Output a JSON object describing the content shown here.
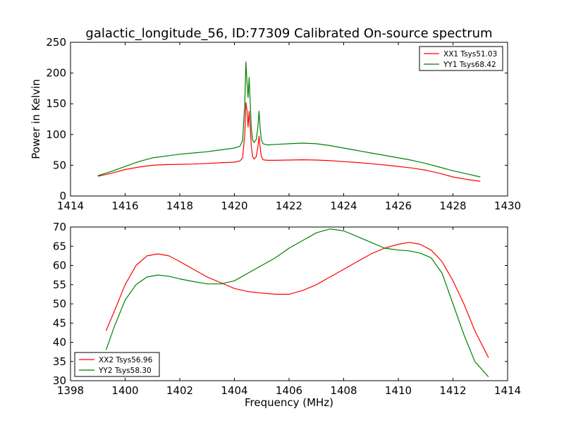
{
  "figure": {
    "title": "galactic_longitude_56, ID:77309 Calibrated On-source spectrum"
  },
  "chart_data": [
    {
      "type": "line",
      "title": "galactic_longitude_56, ID:77309 Calibrated On-source spectrum",
      "xlabel": "",
      "ylabel": "Power in Kelvin",
      "xlim": [
        1414,
        1430
      ],
      "ylim": [
        0,
        250
      ],
      "xticks": [
        1414,
        1416,
        1418,
        1420,
        1422,
        1424,
        1426,
        1428,
        1430
      ],
      "yticks": [
        0,
        50,
        100,
        150,
        200,
        250
      ],
      "grid": false,
      "legend_position": "top-right",
      "series": [
        {
          "name": "XX1 Tsys51.03",
          "color": "#ff0000",
          "x": [
            1415.0,
            1415.5,
            1416.0,
            1416.5,
            1417.0,
            1417.5,
            1418.0,
            1418.5,
            1419.0,
            1419.5,
            1420.0,
            1420.2,
            1420.3,
            1420.38,
            1420.42,
            1420.46,
            1420.5,
            1420.54,
            1420.58,
            1420.62,
            1420.66,
            1420.72,
            1420.8,
            1420.86,
            1420.9,
            1420.94,
            1420.98,
            1421.05,
            1421.2,
            1421.5,
            1422.0,
            1422.5,
            1423.0,
            1423.5,
            1424.0,
            1424.5,
            1425.0,
            1425.5,
            1426.0,
            1426.5,
            1427.0,
            1427.5,
            1428.0,
            1428.5,
            1429.0
          ],
          "values": [
            32,
            37,
            43,
            47,
            50,
            51,
            51.5,
            52,
            53,
            54,
            55,
            57,
            62,
            100,
            152,
            140,
            112,
            138,
            110,
            80,
            65,
            60,
            64,
            80,
            97,
            80,
            65,
            59,
            58,
            58,
            58.5,
            59,
            58.5,
            57.5,
            56,
            54.5,
            52.5,
            50.5,
            48,
            45.5,
            42,
            37,
            31,
            27,
            24
          ]
        },
        {
          "name": "YY1 Tsys68.42",
          "color": "#008000",
          "x": [
            1415.0,
            1415.5,
            1416.0,
            1416.5,
            1417.0,
            1417.5,
            1418.0,
            1418.5,
            1419.0,
            1419.5,
            1420.0,
            1420.2,
            1420.3,
            1420.38,
            1420.42,
            1420.46,
            1420.5,
            1420.54,
            1420.58,
            1420.62,
            1420.66,
            1420.72,
            1420.8,
            1420.86,
            1420.9,
            1420.94,
            1420.98,
            1421.05,
            1421.2,
            1421.5,
            1422.0,
            1422.5,
            1423.0,
            1423.5,
            1424.0,
            1424.5,
            1425.0,
            1425.5,
            1426.0,
            1426.5,
            1427.0,
            1427.5,
            1428.0,
            1428.5,
            1429.0
          ],
          "values": [
            33,
            40,
            48,
            56,
            62,
            65,
            68,
            70,
            72,
            75,
            78,
            81,
            90,
            150,
            218,
            185,
            160,
            193,
            150,
            110,
            92,
            87,
            92,
            112,
            138,
            112,
            92,
            85,
            83,
            84,
            85,
            86,
            85,
            82,
            78,
            74,
            70,
            66,
            62,
            58,
            53,
            47,
            41,
            36,
            31
          ]
        }
      ]
    },
    {
      "type": "line",
      "title": "",
      "xlabel": "Frequency (MHz)",
      "ylabel": "",
      "xlim": [
        1398,
        1414
      ],
      "ylim": [
        30,
        70
      ],
      "xticks": [
        1398,
        1400,
        1402,
        1404,
        1406,
        1408,
        1410,
        1412,
        1414
      ],
      "yticks": [
        30,
        35,
        40,
        45,
        50,
        55,
        60,
        65,
        70
      ],
      "grid": false,
      "legend_position": "bottom-left",
      "series": [
        {
          "name": "XX2 Tsys56.96",
          "color": "#ff0000",
          "x": [
            1399.3,
            1399.6,
            1400.0,
            1400.4,
            1400.8,
            1401.2,
            1401.6,
            1402.0,
            1402.5,
            1403.0,
            1403.5,
            1404.0,
            1404.5,
            1405.0,
            1405.5,
            1406.0,
            1406.5,
            1407.0,
            1407.5,
            1408.0,
            1408.5,
            1409.0,
            1409.5,
            1410.0,
            1410.4,
            1410.8,
            1411.2,
            1411.6,
            1412.0,
            1412.4,
            1412.8,
            1413.3
          ],
          "values": [
            43,
            48,
            55,
            60,
            62.5,
            63,
            62.5,
            61,
            59,
            57,
            55.5,
            54,
            53.2,
            52.8,
            52.5,
            52.5,
            53.5,
            55,
            57,
            59,
            61,
            63,
            64.5,
            65.5,
            66,
            65.5,
            64,
            61,
            56,
            50,
            43,
            36
          ]
        },
        {
          "name": "YY2 Tsys58.30",
          "color": "#008000",
          "x": [
            1399.3,
            1399.6,
            1400.0,
            1400.4,
            1400.8,
            1401.2,
            1401.6,
            1402.0,
            1402.5,
            1403.0,
            1403.5,
            1404.0,
            1404.5,
            1405.0,
            1405.5,
            1406.0,
            1406.5,
            1407.0,
            1407.5,
            1408.0,
            1408.5,
            1409.0,
            1409.5,
            1410.0,
            1410.4,
            1410.8,
            1411.2,
            1411.6,
            1412.0,
            1412.4,
            1412.8,
            1413.3
          ],
          "values": [
            38,
            44,
            51,
            55,
            57,
            57.5,
            57.2,
            56.5,
            55.8,
            55.2,
            55.2,
            56,
            58,
            60,
            62,
            64.5,
            66.5,
            68.5,
            69.5,
            69,
            67.5,
            66,
            64.5,
            64,
            63.8,
            63.2,
            62,
            58,
            50,
            42,
            35,
            31
          ]
        }
      ]
    }
  ]
}
